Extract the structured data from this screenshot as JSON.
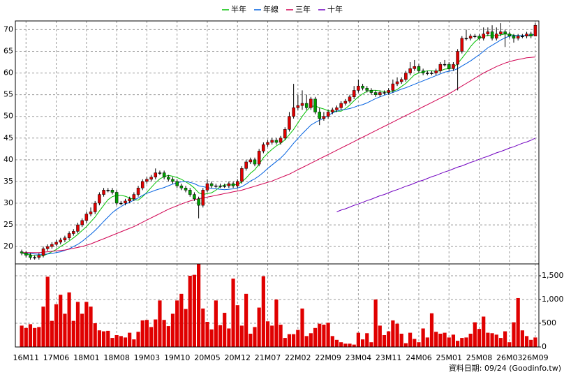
{
  "chart_data": {
    "type": "candlestick",
    "categories": [
      null,
      "16M11",
      null,
      null,
      null,
      null,
      null,
      null,
      "17M06",
      null,
      null,
      null,
      null,
      null,
      null,
      "18M01",
      null,
      null,
      null,
      null,
      null,
      null,
      "18M08",
      null,
      null,
      null,
      null,
      null,
      null,
      "19M03",
      null,
      null,
      null,
      null,
      null,
      null,
      "19M10",
      null,
      null,
      null,
      null,
      null,
      null,
      "20M05",
      null,
      null,
      null,
      null,
      null,
      null,
      "20M12",
      null,
      null,
      null,
      null,
      null,
      null,
      "21M07",
      null,
      null,
      null,
      null,
      null,
      null,
      "22M02",
      null,
      null,
      null,
      null,
      null,
      null,
      "22M09",
      null,
      null,
      null,
      null,
      null,
      null,
      "23M04",
      null,
      null,
      null,
      null,
      null,
      null,
      "23M11",
      null,
      null,
      null,
      null,
      null,
      null,
      "24M06",
      null,
      null,
      null,
      null,
      null,
      null,
      "25M01",
      null,
      null,
      null,
      null,
      null,
      null,
      "25M08",
      null,
      null,
      null,
      null,
      null,
      null,
      "26M03",
      null,
      null,
      null,
      null,
      null,
      "26M09"
    ],
    "open": [
      18.8,
      18.5,
      18,
      17.5,
      17.5,
      18,
      19.5,
      20,
      20.5,
      21,
      21.5,
      22,
      23,
      23.5,
      25,
      26,
      27.5,
      28,
      30,
      32,
      33,
      33,
      32.5,
      30,
      30,
      30.5,
      31,
      32,
      33.5,
      35,
      35.5,
      36,
      37,
      37,
      36,
      35.5,
      35,
      34,
      33.5,
      33,
      32,
      31,
      29.5,
      33,
      34.5,
      34,
      34,
      34,
      34,
      34.5,
      34,
      35,
      38,
      39.5,
      40,
      39,
      42,
      43.5,
      44,
      44.5,
      44,
      45,
      47,
      50,
      52,
      52.5,
      53,
      52,
      54,
      51,
      49.5,
      50,
      51,
      51.5,
      52,
      53,
      53.5,
      54.5,
      56,
      57,
      56.5,
      56,
      55.5,
      55,
      55.5,
      55.5,
      56,
      57.5,
      58,
      58.5,
      60,
      61,
      61.5,
      60.5,
      60,
      60,
      60,
      60.5,
      62,
      62,
      61,
      62,
      65,
      68,
      68,
      68.5,
      68.5,
      68,
      69,
      69.5,
      68,
      69,
      69.5,
      69,
      68.5,
      68,
      68.5,
      68.5,
      69,
      68.5
    ],
    "high": [
      19.3,
      19,
      18.5,
      18,
      18.5,
      20,
      20.5,
      21,
      21.5,
      22,
      22.5,
      23.5,
      24,
      25.5,
      26.5,
      28,
      29,
      30.5,
      32.5,
      33.5,
      33.5,
      33.5,
      33,
      30.5,
      31,
      31.5,
      32.5,
      34,
      35.5,
      36,
      36.5,
      38,
      37.5,
      37.5,
      36.5,
      36,
      35.5,
      34.5,
      34,
      33.5,
      32.5,
      31.5,
      33.5,
      35.5,
      35,
      34.5,
      34.5,
      34.5,
      35,
      35,
      35.5,
      38.5,
      40,
      40.5,
      40.5,
      42.5,
      44,
      44.5,
      45,
      45,
      45.5,
      47.5,
      51,
      57.5,
      55,
      56,
      55,
      54.5,
      54.5,
      52,
      51,
      51.5,
      52,
      52.5,
      53.5,
      54,
      55,
      57,
      58.5,
      57.5,
      57,
      56.5,
      56,
      56,
      56,
      56.5,
      58.5,
      59,
      59,
      60.5,
      62.5,
      63,
      62,
      61,
      60.5,
      60.5,
      61,
      62.5,
      63,
      62.5,
      62.5,
      65.5,
      68.5,
      70,
      69,
      69,
      69,
      70.5,
      70.5,
      71,
      70.5,
      71.5,
      70,
      69.5,
      69,
      69,
      69,
      69.5,
      69.5,
      71.5
    ],
    "low": [
      18,
      17.5,
      17,
      17,
      17,
      17.5,
      19,
      19.5,
      20,
      20.5,
      21,
      21.5,
      22.5,
      23,
      24.5,
      25.5,
      27,
      27.5,
      29.5,
      31.5,
      32.5,
      32,
      29.5,
      29.5,
      29.5,
      30,
      30.5,
      31.5,
      33,
      34.5,
      35,
      35.5,
      36.5,
      35.5,
      35,
      34.5,
      33.5,
      33,
      32.5,
      31.5,
      30.5,
      26.5,
      29,
      32.5,
      33.5,
      33.5,
      33.5,
      33.5,
      33.5,
      33.5,
      33.5,
      34.5,
      37.5,
      39,
      38.5,
      38.5,
      41.5,
      43,
      43.5,
      43.5,
      43.5,
      44.5,
      46.5,
      49.5,
      51.5,
      51.5,
      51.5,
      51.5,
      50.5,
      48,
      49,
      49.5,
      50.5,
      51,
      51.5,
      52.5,
      53,
      54,
      55.5,
      56,
      55.5,
      55,
      54.5,
      54.5,
      55,
      55,
      55.5,
      57,
      57.5,
      58,
      59.5,
      60.5,
      60,
      59.5,
      59.5,
      59.5,
      59.5,
      60,
      61.5,
      60.5,
      60.5,
      56,
      64.5,
      67.5,
      67.5,
      68,
      67.5,
      67.5,
      68.5,
      67.5,
      67.5,
      68.5,
      66,
      68,
      67,
      67.5,
      68,
      68,
      68,
      68.5
    ],
    "close": [
      18.5,
      18,
      17.5,
      17.5,
      18,
      19.5,
      20,
      20.5,
      21,
      21.5,
      22,
      23,
      23.5,
      25,
      26,
      27.5,
      28,
      30,
      32,
      33,
      33,
      32.5,
      30,
      30,
      30.5,
      31,
      32,
      33.5,
      35,
      35.5,
      36,
      37,
      37,
      36,
      35.5,
      35,
      34,
      33.5,
      33,
      32,
      31,
      29.5,
      33,
      34.5,
      34,
      34,
      34,
      34,
      34.5,
      34,
      35,
      38,
      39.5,
      40,
      39,
      42,
      43.5,
      44,
      44.5,
      44,
      45,
      47,
      50,
      52,
      52.5,
      53,
      52,
      54,
      51,
      49.5,
      50,
      51,
      51.5,
      52,
      53,
      53.5,
      54.5,
      56,
      57,
      56.5,
      56,
      55.5,
      55,
      55.5,
      55.5,
      56,
      57.5,
      58,
      58.5,
      60,
      61,
      61.5,
      60.5,
      60,
      60,
      60,
      60.5,
      62,
      62,
      61,
      62,
      65,
      68,
      68,
      68.5,
      68.5,
      68,
      69,
      69.5,
      68,
      69,
      69.5,
      69,
      68.5,
      68,
      68.5,
      68.5,
      69,
      68.5,
      71
    ],
    "up_color": "#e00000",
    "down_color": "#00a000",
    "ylim": [
      16,
      72
    ],
    "yticks": [
      20,
      25,
      30,
      35,
      40,
      45,
      50,
      55,
      60,
      65,
      70
    ],
    "grid": true,
    "moving_averages": [
      {
        "name": "半年",
        "color": "#00c000",
        "values": [
          18.5,
          18.3,
          18.1,
          17.9,
          17.8,
          17.9,
          18.3,
          18.8,
          19.3,
          20,
          20.6,
          21.3,
          22,
          22.8,
          23.7,
          24.6,
          25.7,
          26.8,
          28.2,
          29.5,
          30.8,
          31.5,
          31.8,
          31.8,
          31.6,
          31.2,
          30.8,
          30.7,
          31.5,
          32.5,
          33.6,
          34.7,
          35.6,
          36.1,
          36.4,
          36.2,
          35.9,
          35.5,
          34.9,
          34.3,
          33.5,
          32.4,
          32,
          32.2,
          32.4,
          33,
          33.8,
          34.2,
          34.2,
          34.2,
          34.3,
          34.9,
          35.8,
          36.9,
          37.7,
          39,
          40.5,
          41.5,
          42.4,
          43.2,
          43.8,
          44.6,
          45.8,
          47,
          48.5,
          50,
          51.3,
          52.3,
          52.4,
          52,
          51.7,
          51.3,
          51.2,
          51.2,
          51.2,
          51.8,
          52.6,
          53.6,
          54.5,
          55.2,
          55.8,
          56,
          56,
          55.9,
          55.7,
          55.5,
          55.8,
          56.2,
          56.9,
          57.6,
          58.6,
          59.6,
          60,
          60.3,
          60.5,
          60.5,
          60.4,
          60.5,
          60.9,
          61,
          61.2,
          62.2,
          63.4,
          64.7,
          66.1,
          67.2,
          68,
          68.4,
          68.7,
          68.6,
          68.6,
          68.8,
          69,
          68.9,
          68.7,
          68.6,
          68.6,
          68.6,
          68.6,
          69
        ]
      },
      {
        "name": "年線",
        "color": "#0060e0",
        "values": [
          18.6,
          18.5,
          18.4,
          18.3,
          18.2,
          18.2,
          18.3,
          18.4,
          18.6,
          18.8,
          19.1,
          19.5,
          20,
          20.5,
          21.2,
          22,
          22.8,
          23.7,
          24.7,
          25.8,
          26.8,
          27.8,
          28.6,
          29.2,
          29.8,
          30.2,
          30.7,
          31.2,
          31.8,
          32.3,
          32.6,
          33,
          33.3,
          33.6,
          34,
          34.4,
          34.7,
          34.9,
          35,
          34.8,
          34.5,
          34,
          33.8,
          33.6,
          33.4,
          33.3,
          33.2,
          33.1,
          33.2,
          33.3,
          33.5,
          33.8,
          34.4,
          35.1,
          35.6,
          36.3,
          37.1,
          38,
          38.8,
          39.6,
          40.4,
          41.4,
          42.6,
          43.8,
          44.9,
          46,
          47,
          48,
          48.6,
          49.1,
          49.6,
          50.2,
          50.8,
          51.2,
          51.5,
          51.6,
          51.8,
          52.1,
          52.5,
          52.7,
          53.1,
          53.6,
          54.1,
          54.5,
          54.9,
          55.2,
          55.5,
          55.9,
          56.3,
          56.6,
          57,
          57.4,
          57.8,
          58.2,
          58.6,
          59,
          59.4,
          59.8,
          60.2,
          60.4,
          60.6,
          61,
          61.6,
          62.2,
          62.8,
          63.5,
          64.2,
          65,
          65.8,
          66.4,
          67,
          67.6,
          68.1,
          68.5,
          68.6,
          68.6,
          68.6,
          68.7,
          68.8,
          68.8
        ]
      },
      {
        "name": "三年",
        "color": "#d00050",
        "values": [
          18.6,
          18.6,
          18.6,
          18.6,
          18.6,
          18.7,
          18.8,
          18.9,
          19,
          19.1,
          19.2,
          19.4,
          19.6,
          19.8,
          20,
          20.3,
          20.6,
          21,
          21.4,
          21.8,
          22.2,
          22.6,
          23,
          23.4,
          23.8,
          24.2,
          24.6,
          25.1,
          25.6,
          26.1,
          26.6,
          27.1,
          27.6,
          28.1,
          28.6,
          29,
          29.4,
          29.8,
          30.2,
          30.5,
          30.8,
          31,
          31.2,
          31.4,
          31.6,
          31.8,
          32,
          32.2,
          32.4,
          32.6,
          32.8,
          33,
          33.3,
          33.6,
          33.9,
          34.2,
          34.5,
          34.8,
          35.1,
          35.5,
          35.9,
          36.3,
          36.7,
          37.2,
          37.7,
          38.2,
          38.7,
          39.2,
          39.7,
          40.2,
          40.7,
          41.2,
          41.7,
          42.2,
          42.7,
          43.2,
          43.7,
          44.2,
          44.7,
          45.2,
          45.7,
          46.2,
          46.7,
          47.2,
          47.7,
          48.2,
          48.7,
          49.2,
          49.7,
          50.2,
          50.7,
          51.2,
          51.7,
          52.2,
          52.7,
          53.2,
          53.7,
          54.2,
          54.7,
          55.2,
          55.8,
          56.4,
          57,
          57.6,
          58.2,
          58.8,
          59.4,
          60,
          60.5,
          61,
          61.5,
          61.9,
          62.3,
          62.6,
          62.9,
          63.1,
          63.3,
          63.5,
          63.6,
          63.7
        ]
      },
      {
        "name": "十年",
        "color": "#7000c0",
        "values": [
          null,
          null,
          null,
          null,
          null,
          null,
          null,
          null,
          null,
          null,
          null,
          null,
          null,
          null,
          null,
          null,
          null,
          null,
          null,
          null,
          null,
          null,
          null,
          null,
          null,
          null,
          null,
          null,
          null,
          null,
          null,
          null,
          null,
          null,
          null,
          null,
          null,
          null,
          null,
          null,
          null,
          null,
          null,
          null,
          null,
          null,
          null,
          null,
          null,
          null,
          null,
          null,
          null,
          null,
          null,
          null,
          null,
          null,
          null,
          null,
          null,
          null,
          null,
          null,
          null,
          null,
          null,
          null,
          null,
          null,
          null,
          null,
          null,
          28,
          28.4,
          28.7,
          29.1,
          29.5,
          29.8,
          30.2,
          30.6,
          30.9,
          31.3,
          31.7,
          32,
          32.4,
          32.8,
          33.1,
          33.5,
          33.9,
          34.2,
          34.6,
          35,
          35.3,
          35.7,
          36.1,
          36.4,
          36.8,
          37.2,
          37.5,
          37.9,
          38.3,
          38.6,
          39,
          39.4,
          39.7,
          40.1,
          40.5,
          40.8,
          41.2,
          41.6,
          41.9,
          42.3,
          42.7,
          43,
          43.4,
          43.8,
          44.1,
          44.5,
          45
        ]
      }
    ],
    "volume": {
      "color": "#e00000",
      "ylim": [
        0,
        1750
      ],
      "yticks": [
        0,
        500,
        {
          "value": 1000,
          "label": "1,000"
        },
        {
          "value": 1500,
          "label": "1,500"
        }
      ],
      "values": [
        450,
        400,
        480,
        400,
        420,
        850,
        1480,
        550,
        900,
        1100,
        700,
        1150,
        550,
        950,
        700,
        950,
        850,
        500,
        350,
        330,
        340,
        190,
        250,
        230,
        200,
        300,
        160,
        320,
        560,
        570,
        420,
        580,
        980,
        570,
        440,
        700,
        980,
        1120,
        800,
        1500,
        1520,
        1750,
        810,
        530,
        370,
        980,
        460,
        720,
        390,
        1440,
        880,
        450,
        1120,
        280,
        420,
        830,
        1490,
        540,
        450,
        1000,
        470,
        190,
        270,
        270,
        360,
        810,
        230,
        290,
        400,
        490,
        470,
        510,
        230,
        150,
        100,
        70,
        70,
        50,
        300,
        160,
        290,
        100,
        1000,
        450,
        250,
        330,
        560,
        490,
        280,
        80,
        300,
        170,
        100,
        390,
        200,
        710,
        320,
        280,
        300,
        200,
        260,
        130,
        190,
        200,
        280,
        520,
        380,
        640,
        300,
        290,
        260,
        190,
        330,
        100,
        520,
        1030,
        350,
        230,
        150,
        200
      ]
    },
    "source": "資料日期: 09/24  (Goodinfo.tw)"
  }
}
